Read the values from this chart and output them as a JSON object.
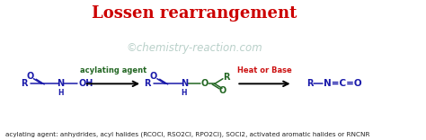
{
  "title": "Lossen rearrangement",
  "title_color": "#cc0000",
  "title_fontsize": 13,
  "watermark": "©chemistry-reaction.com",
  "watermark_color": "#adc8c0",
  "watermark_fontsize": 8.5,
  "bg_color": "#ffffff",
  "footnote": "acylating agent: anhydrides, acyl halides (RCOCl, RSO2Cl, RPO2Cl), SOCl2, activated aromatic halides or RNCNR",
  "footnote_fontsize": 5.2,
  "footnote_color": "#222222",
  "blue": "#1a1aaa",
  "green": "#226622",
  "red": "#cc1111",
  "black": "#000000"
}
